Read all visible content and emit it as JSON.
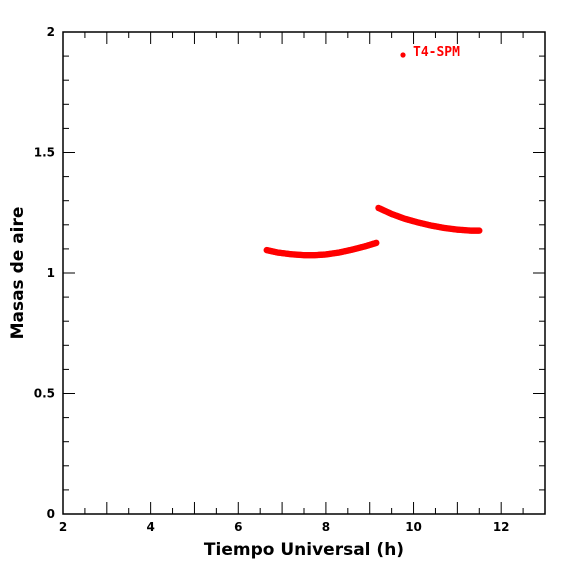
{
  "chart_data": {
    "type": "scatter",
    "xlabel": "Tiempo Universal (h)",
    "ylabel": "Masas de aire",
    "xlim": [
      2,
      13
    ],
    "ylim": [
      0,
      2
    ],
    "xticks": [
      2,
      4,
      6,
      8,
      10,
      12
    ],
    "xtick_labels": [
      "2",
      "4",
      "6",
      "8",
      "10",
      12
    ],
    "yticks": [
      0,
      0.5,
      1,
      1.5,
      2
    ],
    "ytick_labels": [
      "0",
      "0.5",
      "1",
      "1.5",
      "2"
    ],
    "grid": false,
    "legend_position": "top-right",
    "series": [
      {
        "name": "T4-SPM",
        "color": "#ff0000",
        "segments": [
          {
            "x": [
              6.65,
              6.9,
              7.2,
              7.5,
              7.75,
              8.0,
              8.3,
              8.6,
              8.9,
              9.15
            ],
            "y": [
              1.095,
              1.085,
              1.078,
              1.074,
              1.074,
              1.077,
              1.085,
              1.097,
              1.111,
              1.125
            ]
          },
          {
            "x": [
              9.2,
              9.5,
              9.8,
              10.1,
              10.4,
              10.7,
              11.0,
              11.3,
              11.5
            ],
            "y": [
              1.27,
              1.245,
              1.225,
              1.21,
              1.197,
              1.187,
              1.18,
              1.176,
              1.176
            ]
          }
        ]
      }
    ]
  }
}
